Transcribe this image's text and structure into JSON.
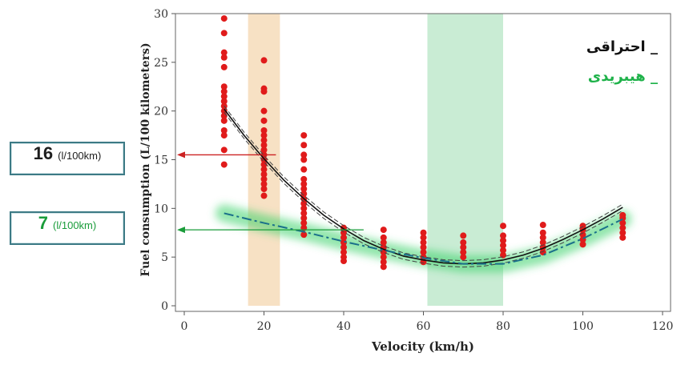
{
  "chart_data": {
    "type": "scatter",
    "xlabel": "Velocity (km/h)",
    "ylabel": "Fuel consumption (L/100 kilometers)",
    "xlim": [
      0,
      120
    ],
    "ylim": [
      0,
      30
    ],
    "x_ticks": [
      "0",
      "20",
      "40",
      "60",
      "80",
      "100",
      "120"
    ],
    "y_ticks": [
      "0",
      "5",
      "10",
      "15",
      "20",
      "25",
      "30"
    ],
    "shaded_bands": [
      {
        "name": "urban-band",
        "x_from": 16,
        "x_to": 24,
        "color": "#f7e1c4"
      },
      {
        "name": "optimal-band",
        "x_from": 61,
        "x_to": 80,
        "color": "#c9ecd4"
      }
    ],
    "scatter_points": {
      "color": "#e01b1b",
      "groups": [
        {
          "x": 10,
          "y": [
            14.5,
            16,
            17.5,
            18,
            19,
            19.5,
            20,
            20.5,
            21,
            21.5,
            22,
            22.5,
            24.5,
            25.5,
            26,
            28,
            29.5
          ]
        },
        {
          "x": 20,
          "y": [
            11.3,
            12,
            12.5,
            13,
            13.5,
            14,
            14.5,
            15,
            15.5,
            16,
            16.5,
            17,
            17.5,
            18,
            19,
            20,
            22,
            22.3,
            25.2
          ]
        },
        {
          "x": 30,
          "y": [
            7.3,
            8,
            8.5,
            9,
            9.5,
            10,
            10.5,
            11,
            11.5,
            12,
            12.5,
            13,
            14,
            15,
            15.5,
            16.5,
            17.5
          ]
        },
        {
          "x": 40,
          "y": [
            4.6,
            5,
            5.5,
            6,
            6.5,
            7,
            7.5,
            8
          ]
        },
        {
          "x": 50,
          "y": [
            4,
            4.5,
            5,
            5.5,
            6,
            6.5,
            7,
            7.8
          ]
        },
        {
          "x": 60,
          "y": [
            4.5,
            5,
            5.5,
            6,
            6.5,
            7,
            7.5
          ]
        },
        {
          "x": 70,
          "y": [
            5,
            5.5,
            6,
            6.5,
            7.2
          ]
        },
        {
          "x": 80,
          "y": [
            5.2,
            5.7,
            6.2,
            6.7,
            7.2,
            8.2
          ]
        },
        {
          "x": 90,
          "y": [
            5.5,
            6,
            6.5,
            7,
            7.5,
            8.3
          ]
        },
        {
          "x": 100,
          "y": [
            6.3,
            6.8,
            7.3,
            7.8,
            8.2
          ]
        },
        {
          "x": 110,
          "y": [
            7,
            7.5,
            8,
            8.5,
            9,
            9.3
          ]
        }
      ]
    },
    "series": [
      {
        "name": "احتراقی",
        "style": "solid",
        "color": "#111111",
        "x": [
          10,
          15,
          20,
          25,
          30,
          35,
          40,
          45,
          50,
          55,
          60,
          65,
          70,
          75,
          80,
          85,
          90,
          95,
          100,
          105,
          110
        ],
        "y": [
          20.2,
          17.5,
          15.1,
          12.9,
          11.0,
          9.3,
          7.9,
          6.7,
          5.8,
          5.1,
          4.7,
          4.4,
          4.3,
          4.4,
          4.7,
          5.2,
          5.9,
          6.8,
          7.8,
          8.9,
          10.1
        ]
      },
      {
        "name": "هیبریدی",
        "style": "dash-dot",
        "color": "#1a6f8a",
        "x": [
          10,
          20,
          30,
          40,
          50,
          60,
          70,
          80,
          90,
          100,
          110
        ],
        "y": [
          9.5,
          8.5,
          7.6,
          6.6,
          5.7,
          4.9,
          4.3,
          4.3,
          5.2,
          6.9,
          8.9
        ]
      }
    ],
    "arrows": [
      {
        "name": "arrow-16",
        "y": 15.5,
        "from_x": 23,
        "color": "#cc2222"
      },
      {
        "name": "arrow-7",
        "y": 7.8,
        "from_x": 45,
        "color": "#1a9c3a"
      }
    ]
  },
  "callouts": {
    "combustion": {
      "value": "16",
      "unit": "(l/100km)"
    },
    "hybrid": {
      "value": "7",
      "unit": "(l/100km)"
    }
  },
  "legend": {
    "combustion": "_ احتراقی",
    "hybrid": "_ هیبریدی"
  }
}
